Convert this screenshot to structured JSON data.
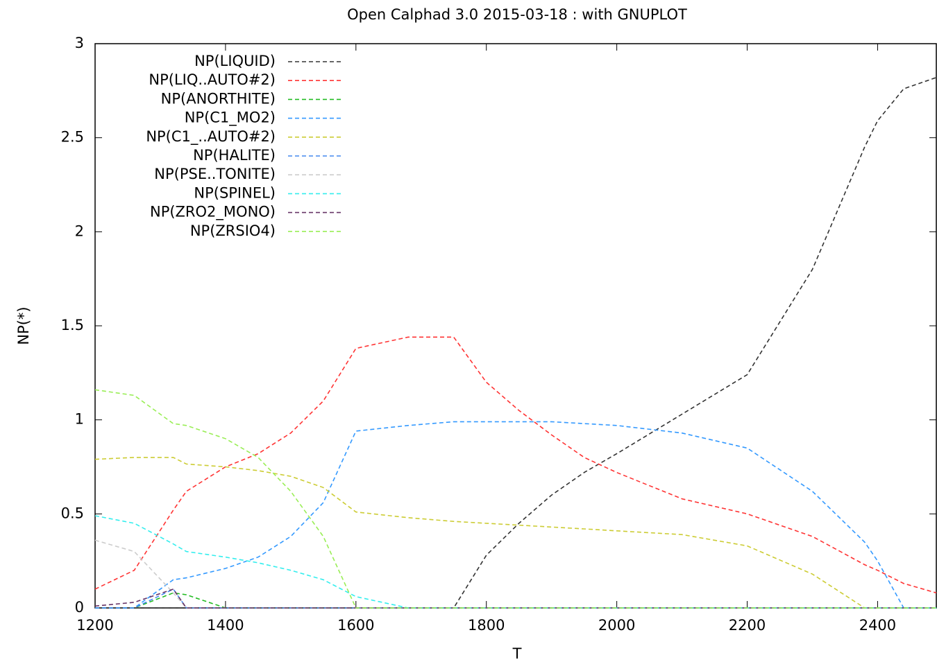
{
  "chart_data": {
    "type": "line",
    "title": "Open Calphad 3.0 2015-03-18 : with GNUPLOT",
    "x_label": "T",
    "y_label": "NP(*)",
    "x": [
      1200,
      1260,
      1320,
      1340,
      1400,
      1450,
      1500,
      1550,
      1600,
      1680,
      1750,
      1800,
      1850,
      1900,
      1950,
      2000,
      2100,
      2200,
      2300,
      2380,
      2400,
      2440,
      2490
    ],
    "series": [
      {
        "name": "NP(LIQUID)",
        "color": "#333333",
        "values": [
          0,
          0,
          0,
          0,
          0,
          0,
          0,
          0,
          0,
          0,
          0,
          0.28,
          0.45,
          0.6,
          0.72,
          0.82,
          1.03,
          1.24,
          1.8,
          2.45,
          2.59,
          2.76,
          2.82
        ]
      },
      {
        "name": "NP(LIQ..AUTO#2)",
        "color": "#ff3333",
        "values": [
          0.1,
          0.2,
          0.52,
          0.62,
          0.75,
          0.82,
          0.93,
          1.1,
          1.38,
          1.44,
          1.44,
          1.2,
          1.05,
          0.92,
          0.8,
          0.72,
          0.58,
          0.5,
          0.38,
          0.23,
          0.2,
          0.13,
          0.08
        ]
      },
      {
        "name": "NP(ANORTHITE)",
        "color": "#22bb22",
        "values": [
          0,
          0,
          0.08,
          0.07,
          0,
          0,
          0,
          0,
          0,
          0,
          0,
          0,
          0,
          0,
          0,
          0,
          0,
          0,
          0,
          0,
          0,
          0,
          0
        ]
      },
      {
        "name": "NP(C1_MO2)",
        "color": "#3399ff",
        "values": [
          0,
          0,
          0.15,
          0.16,
          0.21,
          0.27,
          0.38,
          0.56,
          0.94,
          0.97,
          0.99,
          0.99,
          0.99,
          0.99,
          0.98,
          0.97,
          0.93,
          0.85,
          0.62,
          0.35,
          0.25,
          0,
          0
        ]
      },
      {
        "name": "NP(C1_..AUTO#2)",
        "color": "#cccc33",
        "values": [
          0.79,
          0.8,
          0.8,
          0.765,
          0.75,
          0.73,
          0.7,
          0.64,
          0.51,
          0.48,
          0.46,
          0.45,
          0.44,
          0.43,
          0.42,
          0.41,
          0.39,
          0.33,
          0.18,
          0,
          0,
          0,
          0
        ]
      },
      {
        "name": "NP(HALITE)",
        "color": "#4488ee",
        "values": [
          0,
          0,
          0.1,
          0,
          0,
          0,
          0,
          0,
          0,
          0,
          0,
          0,
          0,
          0,
          0,
          0,
          0,
          0,
          0,
          0,
          0,
          0,
          0
        ]
      },
      {
        "name": "NP(PSE..TONITE)",
        "color": "#cccccc",
        "values": [
          0.36,
          0.3,
          0.08,
          0,
          0,
          0,
          0,
          0,
          0,
          0,
          0,
          0,
          0,
          0,
          0,
          0,
          0,
          0,
          0,
          0,
          0,
          0,
          0
        ]
      },
      {
        "name": "NP(SPINEL)",
        "color": "#33eeee",
        "values": [
          0.49,
          0.45,
          0.34,
          0.3,
          0.27,
          0.24,
          0.2,
          0.15,
          0.06,
          0,
          0,
          0,
          0,
          0,
          0,
          0,
          0,
          0,
          0,
          0,
          0,
          0,
          0
        ]
      },
      {
        "name": "NP(ZRO2_MONO)",
        "color": "#663366",
        "values": [
          0.01,
          0.03,
          0.1,
          0,
          0,
          0,
          0,
          0,
          0,
          0,
          0,
          0,
          0,
          0,
          0,
          0,
          0,
          0,
          0,
          0,
          0,
          0,
          0
        ]
      },
      {
        "name": "NP(ZRSIO4)",
        "color": "#99ee55",
        "values": [
          1.16,
          1.13,
          0.98,
          0.97,
          0.9,
          0.8,
          0.62,
          0.38,
          0,
          0,
          0,
          0,
          0,
          0,
          0,
          0,
          0,
          0,
          0,
          0,
          0,
          0,
          0
        ]
      }
    ],
    "xlim": [
      1200,
      2490
    ],
    "ylim": [
      0,
      3
    ],
    "xticks": [
      1200,
      1400,
      1600,
      1800,
      2000,
      2200,
      2400
    ],
    "yticks": [
      0,
      0.5,
      1,
      1.5,
      2,
      2.5,
      3
    ],
    "legend": "upper left"
  }
}
